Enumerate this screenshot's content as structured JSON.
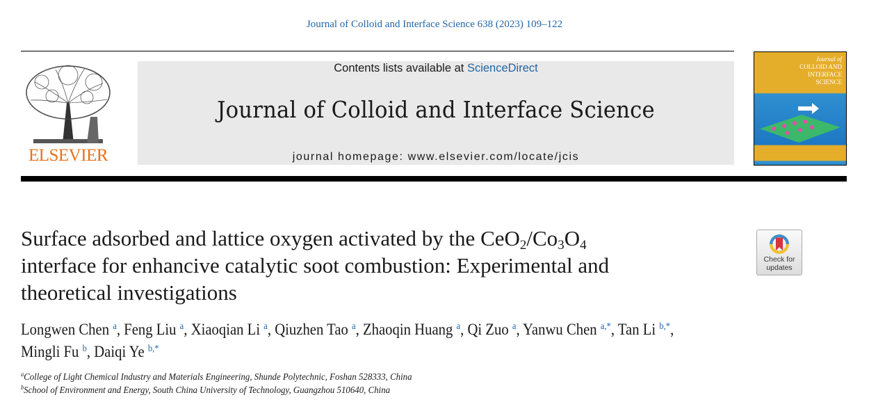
{
  "citation": "Journal of Colloid and Interface Science 638 (2023) 109–122",
  "publisher": {
    "logo_text": "ELSEVIER",
    "color": "#e9711c"
  },
  "masthead": {
    "contents_prefix": "Contents lists available at ",
    "sciencedirect": "ScienceDirect",
    "journal_title": "Journal of Colloid and Interface Science",
    "homepage": "journal homepage: www.elsevier.com/locate/jcis"
  },
  "cover": {
    "title_line1": "Journal of",
    "title_line2": "COLLOID AND",
    "title_line3": "INTERFACE",
    "title_line4": "SCIENCE"
  },
  "article": {
    "title_part1": "Surface adsorbed and lattice oxygen activated by the CeO",
    "sub1": "2",
    "slash": "/Co",
    "sub2": "3",
    "o": "O",
    "sub3": "4",
    "title_part2": "interface for enhancive catalytic soot combustion: Experimental and",
    "title_part3": "theoretical investigations"
  },
  "check_updates": {
    "line1": "Check for",
    "line2": "updates"
  },
  "authors": [
    {
      "name": "Longwen Chen",
      "aff": "a"
    },
    {
      "name": "Feng Liu",
      "aff": "a"
    },
    {
      "name": "Xiaoqian Li",
      "aff": "a"
    },
    {
      "name": "Qiuzhen Tao",
      "aff": "a"
    },
    {
      "name": "Zhaoqin Huang",
      "aff": "a"
    },
    {
      "name": "Qi Zuo",
      "aff": "a"
    },
    {
      "name": "Yanwu Chen",
      "aff": "a,*"
    },
    {
      "name": "Tan Li",
      "aff": "b,*"
    },
    {
      "name": "Mingli Fu",
      "aff": "b"
    },
    {
      "name": "Daiqi Ye",
      "aff": "b,*"
    }
  ],
  "affiliations": [
    {
      "mark": "a",
      "text": "College of Light Chemical Industry and Materials Engineering, Shunde Polytechnic, Foshan 528333, China"
    },
    {
      "mark": "b",
      "text": "School of Environment and Energy, South China University of Technology, Guangzhou 510640, China"
    }
  ]
}
